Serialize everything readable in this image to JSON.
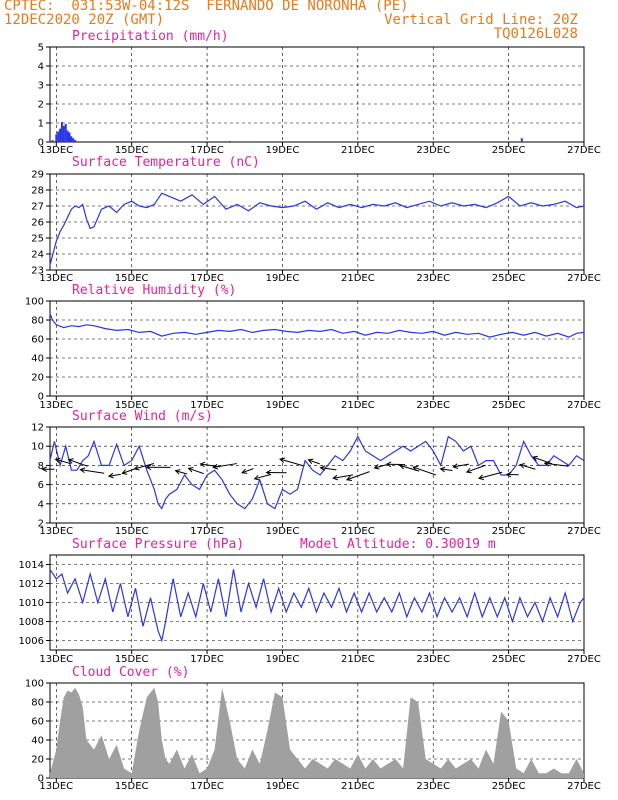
{
  "header": {
    "line1_left": "CPTEC:  031:53W-04:12S  FERNANDO DE NORONHA (PE)",
    "line2_left": "12DEC2020 20Z (GMT)",
    "line2_right": "Vertical Grid Line: 20Z",
    "line3_right": "TQ0126L028"
  },
  "colors": {
    "header": "#e87a1c",
    "title": "#e8219a",
    "line": "#2a36e6",
    "cloud": "#a0a0a0",
    "arrow": "#000000"
  },
  "x_axis": {
    "start_day": 12.833,
    "end_day": 27.0,
    "tick_labels": [
      "13DEC",
      "15DEC",
      "17DEC",
      "19DEC",
      "21DEC",
      "23DEC",
      "25DEC",
      "27DEC"
    ],
    "tick_days": [
      13,
      15,
      17,
      19,
      21,
      23,
      25,
      27
    ]
  },
  "chart_data": [
    {
      "type": "bar",
      "title": "Precipitation (mm/h)",
      "ylim": [
        0,
        5
      ],
      "yticks": [
        0,
        1,
        2,
        3,
        4,
        5
      ],
      "x": [
        12.9,
        13.0,
        13.05,
        13.1,
        13.15,
        13.2,
        13.25,
        13.3,
        13.35,
        13.4,
        13.45,
        13.5,
        17.6,
        25.35
      ],
      "values": [
        0.1,
        0.4,
        0.55,
        0.7,
        1.05,
        0.85,
        0.95,
        0.6,
        0.5,
        0.3,
        0.2,
        0.1,
        0.05,
        0.2
      ]
    },
    {
      "type": "line",
      "title": "Surface Temperature (nC)",
      "ylim": [
        23,
        29
      ],
      "yticks": [
        23,
        24,
        25,
        26,
        27,
        28,
        29
      ],
      "x": [
        12.83,
        12.9,
        13.0,
        13.1,
        13.2,
        13.3,
        13.4,
        13.5,
        13.6,
        13.7,
        13.8,
        13.9,
        14.0,
        14.2,
        14.4,
        14.6,
        14.8,
        15.0,
        15.2,
        15.4,
        15.6,
        15.8,
        16.0,
        16.3,
        16.6,
        16.9,
        17.2,
        17.5,
        17.8,
        18.1,
        18.4,
        18.7,
        19.0,
        19.3,
        19.6,
        19.9,
        20.2,
        20.5,
        20.8,
        21.1,
        21.4,
        21.7,
        22.0,
        22.3,
        22.6,
        22.9,
        23.2,
        23.5,
        23.8,
        24.1,
        24.4,
        24.7,
        25.0,
        25.3,
        25.6,
        25.9,
        26.2,
        26.5,
        26.8,
        27.0
      ],
      "values": [
        23.3,
        23.9,
        24.8,
        25.4,
        25.8,
        26.3,
        26.8,
        27.0,
        26.9,
        27.1,
        26.2,
        25.6,
        25.7,
        26.8,
        27.0,
        26.6,
        27.1,
        27.3,
        27.0,
        26.9,
        27.1,
        27.8,
        27.6,
        27.3,
        27.7,
        27.1,
        27.6,
        26.8,
        27.1,
        26.7,
        27.2,
        27.0,
        26.9,
        27.0,
        27.3,
        26.8,
        27.2,
        26.9,
        27.1,
        26.9,
        27.1,
        27.0,
        27.2,
        26.9,
        27.1,
        27.3,
        27.0,
        27.2,
        27.0,
        27.1,
        26.9,
        27.2,
        27.6,
        27.0,
        27.2,
        27.0,
        27.1,
        27.3,
        26.9,
        27.0
      ]
    },
    {
      "type": "line",
      "title": "Relative Humidity (%)",
      "ylim": [
        0,
        100
      ],
      "yticks": [
        0,
        20,
        40,
        60,
        80,
        100
      ],
      "x": [
        12.83,
        12.9,
        13.0,
        13.2,
        13.4,
        13.6,
        13.8,
        14.0,
        14.3,
        14.6,
        14.9,
        15.2,
        15.5,
        15.8,
        16.1,
        16.4,
        16.7,
        17.0,
        17.3,
        17.6,
        17.9,
        18.2,
        18.5,
        18.8,
        19.1,
        19.4,
        19.7,
        20.0,
        20.3,
        20.6,
        20.9,
        21.2,
        21.5,
        21.8,
        22.1,
        22.4,
        22.7,
        23.0,
        23.3,
        23.6,
        23.9,
        24.2,
        24.5,
        24.8,
        25.1,
        25.4,
        25.7,
        26.0,
        26.3,
        26.6,
        26.8,
        27.0
      ],
      "values": [
        87,
        80,
        75,
        72,
        74,
        73,
        75,
        74,
        71,
        69,
        70,
        67,
        68,
        63,
        66,
        67,
        65,
        67,
        69,
        68,
        70,
        67,
        69,
        70,
        68,
        67,
        69,
        68,
        70,
        66,
        68,
        64,
        67,
        66,
        69,
        67,
        66,
        68,
        64,
        67,
        65,
        66,
        62,
        65,
        67,
        64,
        67,
        63,
        66,
        62,
        66,
        67
      ]
    },
    {
      "type": "line",
      "title": "Surface Wind (m/s)",
      "ylim": [
        2,
        12
      ],
      "yticks": [
        2,
        4,
        6,
        8,
        10,
        12
      ],
      "x": [
        12.83,
        12.95,
        13.1,
        13.25,
        13.4,
        13.55,
        13.7,
        13.85,
        14.0,
        14.2,
        14.4,
        14.6,
        14.8,
        15.0,
        15.2,
        15.4,
        15.6,
        15.7,
        15.8,
        15.9,
        16.0,
        16.2,
        16.4,
        16.6,
        16.8,
        17.0,
        17.2,
        17.4,
        17.6,
        17.8,
        18.0,
        18.2,
        18.4,
        18.6,
        18.8,
        19.0,
        19.2,
        19.4,
        19.6,
        19.8,
        20.0,
        20.2,
        20.4,
        20.6,
        20.8,
        21.0,
        21.2,
        21.4,
        21.6,
        21.8,
        22.0,
        22.2,
        22.4,
        22.6,
        22.8,
        23.0,
        23.2,
        23.4,
        23.6,
        23.8,
        24.0,
        24.2,
        24.4,
        24.6,
        24.8,
        25.0,
        25.2,
        25.4,
        25.6,
        25.8,
        26.0,
        26.2,
        26.4,
        26.6,
        26.8,
        27.0
      ],
      "values": [
        8.5,
        10.5,
        8.0,
        10.0,
        7.5,
        7.5,
        8.5,
        9.0,
        10.5,
        8.0,
        8.0,
        10.2,
        8.0,
        8.5,
        10.0,
        7.5,
        5.5,
        4.0,
        3.5,
        4.5,
        5.0,
        5.5,
        7.0,
        6.0,
        5.5,
        7.0,
        7.5,
        6.5,
        5.0,
        4.0,
        3.5,
        4.5,
        6.5,
        4.0,
        3.5,
        5.5,
        5.0,
        5.5,
        8.5,
        7.5,
        7.0,
        8.0,
        9.0,
        8.5,
        9.5,
        11.0,
        9.5,
        9.0,
        8.5,
        9.0,
        9.5,
        10.0,
        9.5,
        10.0,
        10.5,
        9.5,
        8.0,
        11.0,
        10.5,
        9.5,
        10.0,
        8.0,
        8.5,
        8.5,
        7.0,
        7.0,
        8.0,
        10.5,
        9.0,
        8.0,
        8.0,
        9.0,
        8.5,
        8.0,
        9.0,
        8.5
      ]
    },
    {
      "type": "line",
      "title": "Surface Pressure (hPa)",
      "annotation": "Model Altitude: 0.30019 m",
      "ylim": [
        1005,
        1015
      ],
      "yticks": [
        1006,
        1008,
        1010,
        1012,
        1014
      ],
      "x": [
        12.83,
        13.0,
        13.15,
        13.3,
        13.5,
        13.7,
        13.9,
        14.1,
        14.3,
        14.5,
        14.7,
        14.9,
        15.1,
        15.3,
        15.5,
        15.7,
        15.8,
        15.9,
        16.1,
        16.3,
        16.5,
        16.7,
        16.9,
        17.1,
        17.3,
        17.5,
        17.7,
        17.9,
        18.1,
        18.3,
        18.5,
        18.7,
        18.9,
        19.1,
        19.3,
        19.5,
        19.7,
        19.9,
        20.1,
        20.3,
        20.5,
        20.7,
        20.9,
        21.1,
        21.3,
        21.5,
        21.7,
        21.9,
        22.1,
        22.3,
        22.5,
        22.7,
        22.9,
        23.1,
        23.3,
        23.5,
        23.7,
        23.9,
        24.1,
        24.3,
        24.5,
        24.7,
        24.9,
        25.1,
        25.3,
        25.5,
        25.7,
        25.9,
        26.1,
        26.3,
        26.5,
        26.7,
        26.9,
        27.0
      ],
      "values": [
        1013.5,
        1012.5,
        1013.0,
        1011.0,
        1012.5,
        1010.0,
        1013.0,
        1010.0,
        1012.5,
        1009.0,
        1012.0,
        1008.5,
        1011.5,
        1007.5,
        1010.5,
        1007.0,
        1006.0,
        1008.0,
        1012.5,
        1008.5,
        1011.0,
        1008.5,
        1012.0,
        1009.0,
        1012.5,
        1008.5,
        1013.5,
        1009.0,
        1012.0,
        1009.5,
        1012.5,
        1009.0,
        1011.5,
        1009.0,
        1011.0,
        1009.5,
        1011.5,
        1009.0,
        1011.0,
        1009.5,
        1011.5,
        1009.0,
        1011.0,
        1009.0,
        1011.0,
        1009.0,
        1010.5,
        1009.0,
        1011.0,
        1008.5,
        1010.5,
        1009.0,
        1011.0,
        1008.5,
        1010.5,
        1009.0,
        1010.5,
        1008.5,
        1011.0,
        1008.5,
        1010.5,
        1008.5,
        1010.5,
        1008.0,
        1010.5,
        1008.5,
        1010.0,
        1008.0,
        1010.5,
        1008.5,
        1011.0,
        1008.0,
        1010.0,
        1010.5
      ]
    },
    {
      "type": "area",
      "title": "Cloud Cover (%)",
      "ylim": [
        0,
        100
      ],
      "yticks": [
        0,
        20,
        40,
        60,
        80,
        100
      ],
      "x": [
        12.83,
        13.0,
        13.1,
        13.2,
        13.3,
        13.4,
        13.5,
        13.6,
        13.7,
        13.8,
        14.0,
        14.2,
        14.4,
        14.6,
        14.8,
        15.0,
        15.2,
        15.4,
        15.6,
        15.7,
        15.8,
        15.9,
        16.0,
        16.2,
        16.4,
        16.6,
        16.8,
        17.0,
        17.2,
        17.4,
        17.6,
        17.8,
        18.0,
        18.2,
        18.4,
        18.6,
        18.8,
        19.0,
        19.2,
        19.4,
        19.6,
        19.8,
        20.0,
        20.2,
        20.4,
        20.6,
        20.8,
        21.0,
        21.2,
        21.4,
        21.6,
        21.8,
        22.0,
        22.2,
        22.4,
        22.6,
        22.8,
        23.0,
        23.2,
        23.4,
        23.6,
        23.8,
        24.0,
        24.2,
        24.4,
        24.6,
        24.8,
        25.0,
        25.2,
        25.4,
        25.6,
        25.8,
        26.0,
        26.2,
        26.4,
        26.6,
        26.8,
        27.0
      ],
      "values": [
        5,
        30,
        60,
        85,
        92,
        90,
        95,
        88,
        75,
        40,
        30,
        45,
        20,
        35,
        10,
        5,
        50,
        85,
        95,
        80,
        40,
        20,
        15,
        30,
        10,
        25,
        5,
        10,
        30,
        95,
        60,
        20,
        10,
        30,
        15,
        50,
        90,
        85,
        30,
        20,
        10,
        20,
        15,
        10,
        20,
        15,
        10,
        25,
        10,
        20,
        10,
        15,
        20,
        10,
        85,
        80,
        20,
        15,
        10,
        20,
        10,
        15,
        20,
        10,
        30,
        15,
        70,
        60,
        10,
        5,
        20,
        5,
        5,
        10,
        5,
        5,
        20,
        5
      ]
    }
  ]
}
